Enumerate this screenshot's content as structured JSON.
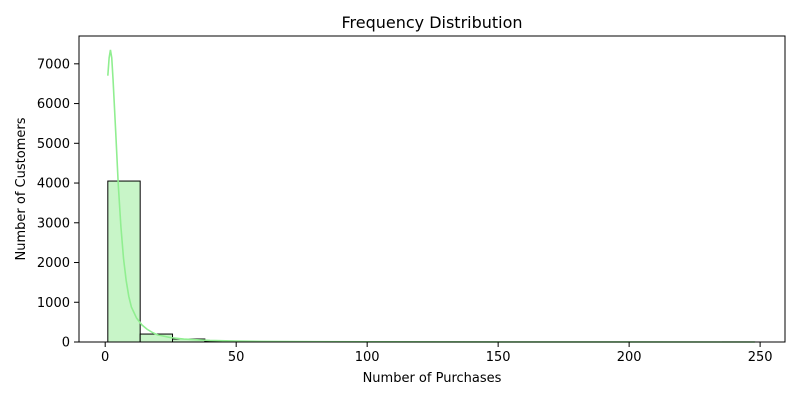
{
  "chart_data": {
    "type": "bar",
    "title": "Frequency Distribution",
    "xlabel": "Number of Purchases",
    "ylabel": "Number of Customers",
    "xlim": [
      -10,
      259.5
    ],
    "ylim": [
      0,
      7700
    ],
    "xticks": [
      0,
      50,
      100,
      150,
      200,
      250
    ],
    "yticks": [
      0,
      1000,
      2000,
      3000,
      4000,
      5000,
      6000,
      7000
    ],
    "bins": {
      "start": 1,
      "width": 12.35,
      "counts": [
        4050,
        200,
        75,
        15,
        8,
        5,
        3,
        2,
        1,
        1,
        1,
        1,
        0,
        0,
        0,
        0,
        0,
        0,
        0,
        1
      ]
    },
    "kde": {
      "x": [
        1,
        1.5,
        2,
        2.5,
        3,
        4,
        5,
        6,
        7,
        8,
        9,
        10,
        12,
        14,
        16,
        18,
        20,
        25,
        30,
        35,
        40,
        50,
        60,
        80,
        100,
        150,
        200,
        248
      ],
      "y": [
        6700,
        7150,
        7350,
        7150,
        6600,
        5300,
        3950,
        2900,
        2100,
        1550,
        1150,
        880,
        600,
        430,
        320,
        240,
        180,
        110,
        75,
        55,
        40,
        25,
        15,
        8,
        4,
        2,
        1,
        0
      ]
    },
    "grid": false,
    "colors": {
      "bar_fill": "#c8f5c8",
      "bar_edge": "#000000",
      "kde_line": "#90ee90"
    }
  }
}
